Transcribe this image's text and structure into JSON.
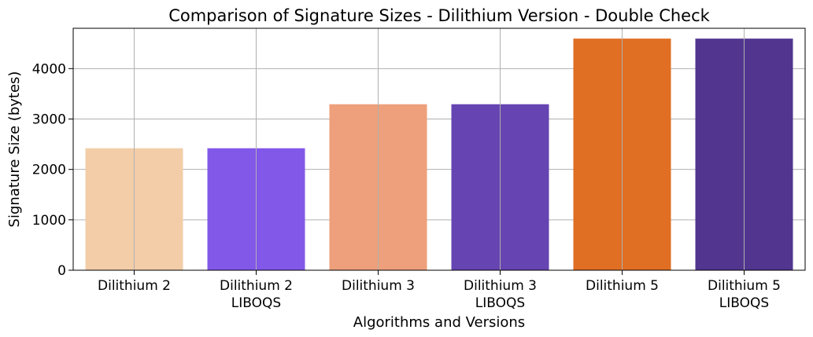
{
  "chart_data": {
    "type": "bar",
    "title": "Comparison of Signature Sizes - Dilithium Version - Double Check",
    "xlabel": "Algorithms and Versions",
    "ylabel": "Signature Size (bytes)",
    "categories": [
      [
        "Dilithium 2"
      ],
      [
        "Dilithium 2",
        "LIBOQS"
      ],
      [
        "Dilithium 3"
      ],
      [
        "Dilithium 3",
        "LIBOQS"
      ],
      [
        "Dilithium 5"
      ],
      [
        "Dilithium 5",
        "LIBOQS"
      ]
    ],
    "values": [
      2420,
      2420,
      3293,
      3293,
      4595,
      4595
    ],
    "colors": [
      "#f2cda8",
      "#8258e8",
      "#eda07b",
      "#6644b1",
      "#e06e23",
      "#51358f"
    ],
    "ylim": [
      0,
      4800
    ],
    "yticks": [
      0,
      1000,
      2000,
      3000,
      4000
    ],
    "grid": true
  }
}
